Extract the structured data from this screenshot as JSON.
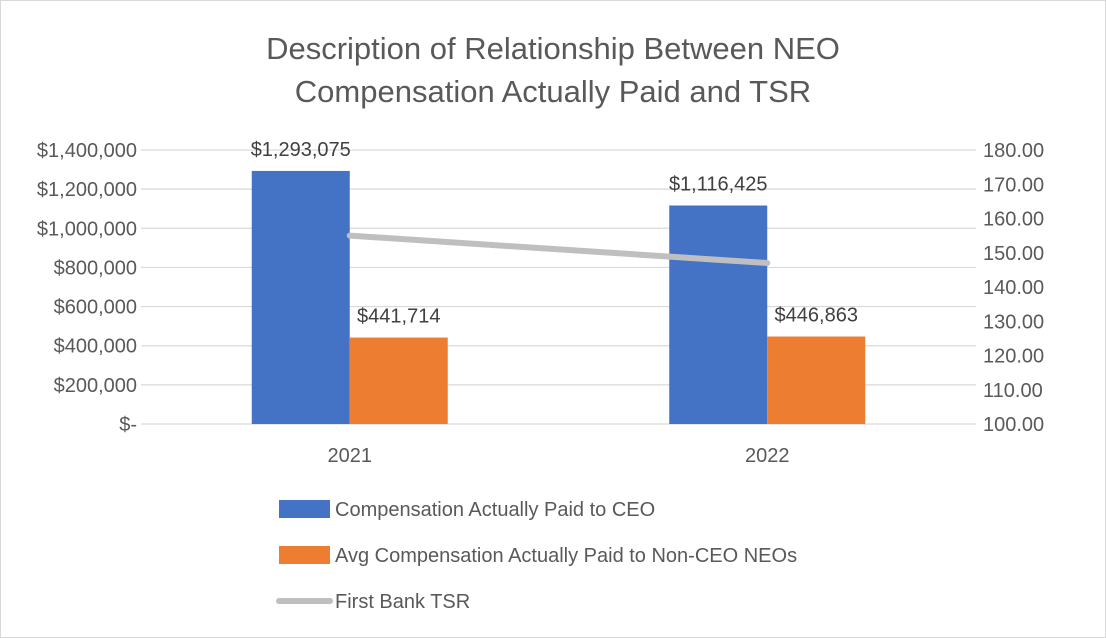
{
  "chart_data": {
    "type": "bar",
    "title": "Description of Relationship Between NEO Compensation Actually Paid and TSR",
    "title_lines": [
      "Description of Relationship Between NEO",
      "Compensation Actually Paid and TSR"
    ],
    "categories": [
      "2021",
      "2022"
    ],
    "series": [
      {
        "name": "Compensation Actually Paid to CEO",
        "type": "bar",
        "axis": "left",
        "color": "#4472c4",
        "values": [
          1293075,
          1116425
        ],
        "labels": [
          "$1,293,075",
          "$1,116,425"
        ]
      },
      {
        "name": "Avg Compensation Actually Paid to Non-CEO NEOs",
        "type": "bar",
        "axis": "left",
        "color": "#ed7d31",
        "values": [
          441714,
          446863
        ],
        "labels": [
          "$441,714",
          "$446,863"
        ]
      },
      {
        "name": "First Bank TSR",
        "type": "line",
        "axis": "right",
        "color": "#bfbfbf",
        "values": [
          155.0,
          147.0
        ]
      }
    ],
    "y_left": {
      "min": 0,
      "max": 1400000,
      "step": 200000,
      "tick_labels": [
        "$-",
        "$200,000",
        "$400,000",
        "$600,000",
        "$800,000",
        "$1,000,000",
        "$1,200,000",
        "$1,400,000"
      ]
    },
    "y_right": {
      "min": 100,
      "max": 180,
      "step": 10,
      "tick_labels": [
        "100.00",
        "110.00",
        "120.00",
        "130.00",
        "140.00",
        "150.00",
        "160.00",
        "170.00",
        "180.00"
      ]
    },
    "grid": true,
    "legend_position": "bottom"
  }
}
